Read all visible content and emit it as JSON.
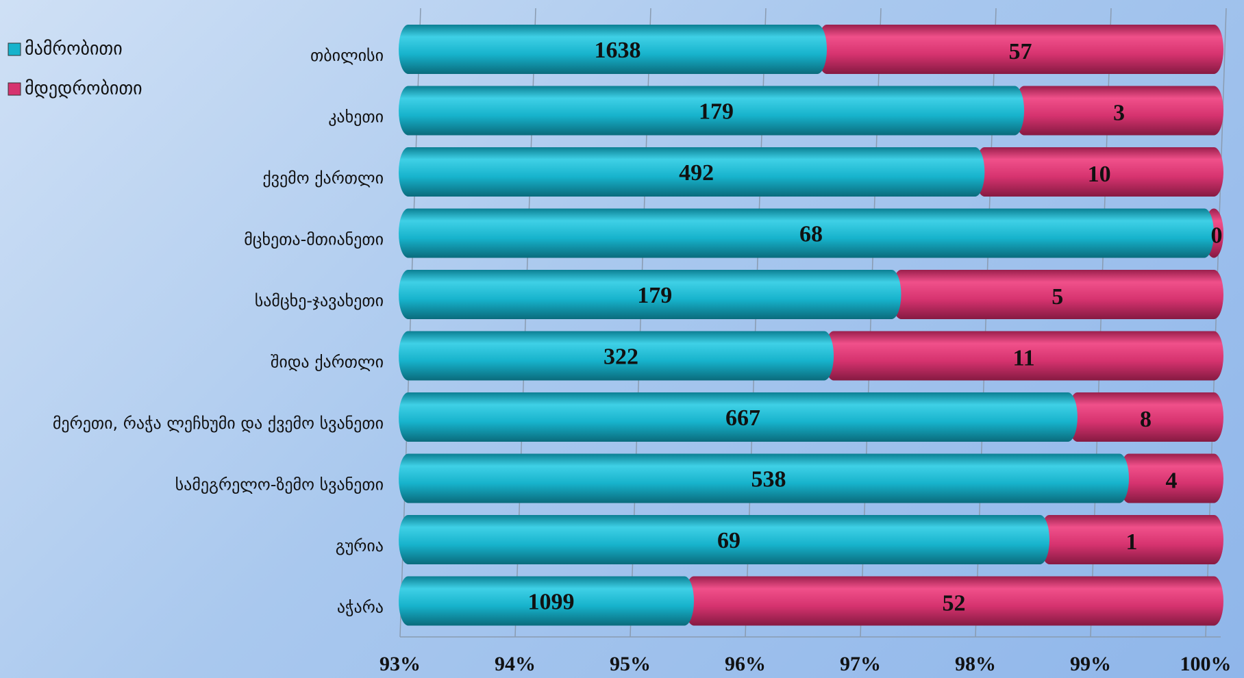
{
  "chart_data": {
    "type": "bar",
    "orientation": "horizontal",
    "stack": "percent",
    "categories": [
      "თბილისი",
      "კახეთი",
      "ქვემო ქართლი",
      "მცხეთა-მთიანეთი",
      "სამცხე-ჯავახეთი",
      "შიდა ქართლი",
      "მერეთი, რაჭა ლეჩხუმი და ქვემო სვანეთი",
      "სამეგრელო-ზემო სვანეთი",
      "გურია",
      "აჭარა"
    ],
    "series": [
      {
        "name": "მამრობითი",
        "color": "#17b3cc",
        "values": [
          1638,
          179,
          492,
          68,
          179,
          322,
          667,
          538,
          69,
          1099
        ]
      },
      {
        "name": "მდედრობითი",
        "color": "#d6336f",
        "values": [
          57,
          3,
          10,
          0,
          5,
          11,
          8,
          4,
          1,
          52
        ]
      }
    ],
    "xlim": [
      93,
      100
    ],
    "xticks": [
      {
        "value": 93,
        "label": "93%"
      },
      {
        "value": 94,
        "label": "94%"
      },
      {
        "value": 95,
        "label": "95%"
      },
      {
        "value": 96,
        "label": "96%"
      },
      {
        "value": 97,
        "label": "97%"
      },
      {
        "value": 98,
        "label": "98%"
      },
      {
        "value": 99,
        "label": "99%"
      },
      {
        "value": 100,
        "label": "100%"
      }
    ],
    "grid": true,
    "legend": "top-left"
  }
}
